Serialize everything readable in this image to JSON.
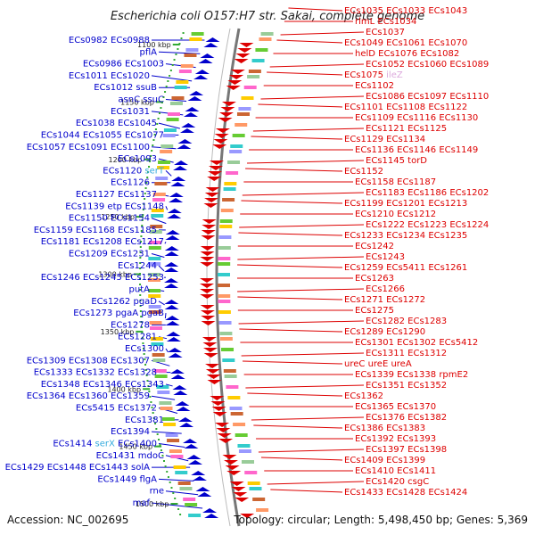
{
  "title": "Escherichia coli O157:H7 str. Sakai, complete genome",
  "accession": "Accession: NC_002695",
  "summary": "Topology: circular; Length: 5,498,450 bp; Genes: 5,369",
  "colors": {
    "forward_strand": "#0000cc",
    "reverse_strand": "#dd0000",
    "rna_gene": "#33aadd",
    "tick_mark": "#33aa33",
    "backbone": "#888888"
  },
  "ticks": [
    "1100 kbp",
    "1150 kbp",
    "1200 kbp",
    "1250 kbp",
    "1300 kbp",
    "1350 kbp",
    "1400 kbp",
    "1450 kbp",
    "1500 kbp"
  ],
  "left_labels": [
    [
      "ECs0982",
      "ECs0988"
    ],
    [
      "pflA"
    ],
    [
      "ECs0986",
      "ECs1003"
    ],
    [
      "ECs1011",
      "ECs1020"
    ],
    [
      "ECs1012",
      "ssuB"
    ],
    [
      "asnC",
      "ssuC"
    ],
    [
      "ECs1031"
    ],
    [
      "ECs1038",
      "ECs1045"
    ],
    [
      "ECs1044",
      "ECs1055",
      "ECs1077"
    ],
    [
      "ECs1057",
      "ECs1091",
      "ECs1100"
    ],
    [
      "ECs1093"
    ],
    [
      "ECs1120",
      "serT"
    ],
    [
      "ECs1126"
    ],
    [
      "ECs1127",
      "ECs1137"
    ],
    [
      "ECs1139",
      "etp",
      "ECs1148"
    ],
    [
      "ECs1150",
      "ECs1154"
    ],
    [
      "ECs1159",
      "ECs1168",
      "ECs1185"
    ],
    [
      "ECs1181",
      "ECs1208",
      "ECs1217"
    ],
    [
      "ECs1209",
      "ECs1231"
    ],
    [
      "ECs1244"
    ],
    [
      "ECs1246",
      "ECs1245",
      "ECs1253"
    ],
    [
      "putA"
    ],
    [
      "ECs1262",
      "pgaD"
    ],
    [
      "ECs1273",
      "pgaA",
      "pgaB"
    ],
    [
      "ECs1278"
    ],
    [
      "ECs1281"
    ],
    [
      "ECs1300"
    ],
    [
      "ECs1309",
      "ECs1308",
      "ECs1307"
    ],
    [
      "ECs1333",
      "ECs1332",
      "ECs1328"
    ],
    [
      "ECs1348",
      "ECs1346",
      "ECs1343"
    ],
    [
      "ECs1364",
      "ECs1360",
      "ECs1359"
    ],
    [
      "ECs5415",
      "ECs1372"
    ],
    [
      "ECs1381"
    ],
    [
      "ECs1394"
    ],
    [
      "ECs1414",
      "serX",
      "ECs1400"
    ],
    [
      "ECs1431",
      "mdoC"
    ],
    [
      "ECs1429",
      "ECs1448",
      "ECs1443",
      "solA"
    ],
    [
      "ECs1449",
      "flgA"
    ],
    [
      "rne"
    ],
    [
      "maf"
    ]
  ],
  "right_labels": [
    [
      "ECs1035",
      "ECs1033",
      "ECs1043"
    ],
    [
      "rlmL",
      "ECs1034"
    ],
    [
      "ECs1037"
    ],
    [
      "ECs1049",
      "ECs1061",
      "ECs1070"
    ],
    [
      "helD",
      "ECs1076",
      "ECs1082"
    ],
    [
      "ECs1052",
      "ECs1060",
      "ECs1089"
    ],
    [
      "ECs1075",
      "ileZ"
    ],
    [
      "ECs1102"
    ],
    [
      "ECs1086",
      "ECs1097",
      "ECs1110"
    ],
    [
      "ECs1101",
      "ECs1108",
      "ECs1122"
    ],
    [
      "ECs1109",
      "ECs1116",
      "ECs1130"
    ],
    [
      "ECs1121",
      "ECs1125"
    ],
    [
      "ECs1129",
      "ECs1134"
    ],
    [
      "ECs1136",
      "ECs1146",
      "ECs1149"
    ],
    [
      "ECs1145",
      "torD"
    ],
    [
      "ECs1152"
    ],
    [
      "ECs1158",
      "ECs1187"
    ],
    [
      "ECs1183",
      "ECs1186",
      "ECs1202"
    ],
    [
      "ECs1199",
      "ECs1201",
      "ECs1213"
    ],
    [
      "ECs1210",
      "ECs1212"
    ],
    [
      "ECs1222",
      "ECs1223",
      "ECs1224"
    ],
    [
      "ECs1233",
      "ECs1234",
      "ECs1235"
    ],
    [
      "ECs1242"
    ],
    [
      "ECs1243"
    ],
    [
      "ECs1259",
      "ECs5411",
      "ECs1261"
    ],
    [
      "ECs1263"
    ],
    [
      "ECs1266"
    ],
    [
      "ECs1271",
      "ECs1272"
    ],
    [
      "ECs1275"
    ],
    [
      "ECs1282",
      "ECs1283"
    ],
    [
      "ECs1289",
      "ECs1290"
    ],
    [
      "ECs1301",
      "ECs1302",
      "ECs5412"
    ],
    [
      "ECs1311",
      "ECs1312"
    ],
    [
      "ureC",
      "ureE",
      "ureA"
    ],
    [
      "ECs1339",
      "ECs1338",
      "rpmE2"
    ],
    [
      "ECs1351",
      "ECs1352"
    ],
    [
      "ECs1362"
    ],
    [
      "ECs1365",
      "ECs1370"
    ],
    [
      "ECs1376",
      "ECs1382"
    ],
    [
      "ECs1386",
      "ECs1383"
    ],
    [
      "ECs1392",
      "ECs1393"
    ],
    [
      "ECs1397",
      "ECs1398"
    ],
    [
      "ECs1409",
      "ECs1399"
    ],
    [
      "ECs1410",
      "ECs1411"
    ],
    [
      "ECs1420",
      "csgC"
    ],
    [
      "ECs1433",
      "ECs1428",
      "ECs1424"
    ]
  ]
}
